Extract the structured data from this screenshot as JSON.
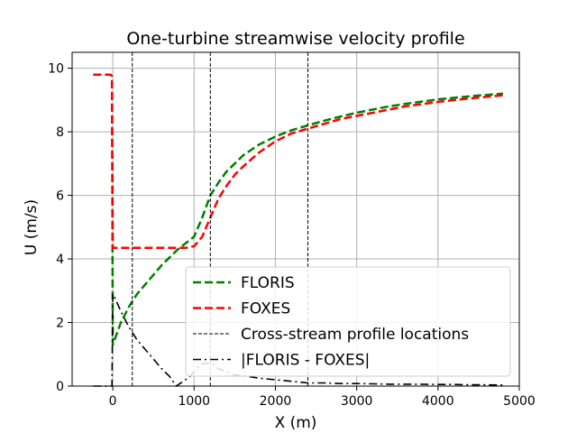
{
  "chart_data": {
    "type": "line",
    "title": "One-turbine streamwise velocity profile",
    "xlabel": "X (m)",
    "ylabel": "U (m/s)",
    "xlim": [
      -500,
      5000
    ],
    "ylim": [
      0,
      10.5
    ],
    "xticks": [
      0,
      1000,
      2000,
      3000,
      4000,
      5000
    ],
    "xtick_labels": [
      "0",
      "1000",
      "2000",
      "3000",
      "4000",
      "5000"
    ],
    "yticks": [
      0,
      2,
      4,
      6,
      8,
      10
    ],
    "ytick_labels": [
      "0",
      "2",
      "4",
      "6",
      "8",
      "10"
    ],
    "grid": true,
    "legend_position": "lower right",
    "series": [
      {
        "name": "FLORIS",
        "color": "#008000",
        "style": "dashed",
        "x": [
          -240,
          -30,
          -10,
          0,
          100,
          200,
          300,
          400,
          500,
          600,
          700,
          800,
          900,
          1000,
          1100,
          1200,
          1300,
          1400,
          1500,
          1600,
          1800,
          2000,
          2200,
          2400,
          2600,
          2800,
          3000,
          3200,
          3400,
          3600,
          3800,
          4000,
          4200,
          4400,
          4600,
          4800
        ],
        "y": [
          9.8,
          9.8,
          9.75,
          1.3,
          2.0,
          2.5,
          2.9,
          3.2,
          3.5,
          3.8,
          4.05,
          4.3,
          4.5,
          4.7,
          5.3,
          6.0,
          6.4,
          6.75,
          7.0,
          7.25,
          7.6,
          7.85,
          8.05,
          8.2,
          8.35,
          8.48,
          8.6,
          8.7,
          8.8,
          8.88,
          8.95,
          9.02,
          9.07,
          9.12,
          9.16,
          9.2
        ]
      },
      {
        "name": "FOXES",
        "color": "#ff0000",
        "style": "dashed",
        "x": [
          -240,
          -30,
          -10,
          0,
          100,
          300,
          500,
          700,
          900,
          1000,
          1100,
          1200,
          1300,
          1400,
          1500,
          1600,
          1800,
          2000,
          2200,
          2400,
          2600,
          2800,
          3000,
          3200,
          3400,
          3600,
          3800,
          4000,
          4200,
          4400,
          4600,
          4800
        ],
        "y": [
          9.8,
          9.8,
          9.75,
          4.35,
          4.35,
          4.35,
          4.35,
          4.35,
          4.35,
          4.4,
          4.7,
          5.3,
          5.9,
          6.3,
          6.65,
          6.9,
          7.35,
          7.7,
          7.95,
          8.1,
          8.25,
          8.4,
          8.5,
          8.6,
          8.7,
          8.8,
          8.87,
          8.94,
          9.0,
          9.05,
          9.1,
          9.15
        ]
      },
      {
        "name": "Cross-stream profile locations",
        "color": "#000000",
        "style": "thin-dashed",
        "vlines": [
          240,
          1200,
          2400
        ]
      },
      {
        "name": "|FLORIS - FOXES|",
        "color": "#000000",
        "style": "dashdot",
        "x": [
          -240,
          -30,
          -10,
          0,
          30,
          100,
          200,
          300,
          400,
          500,
          600,
          700,
          780,
          850,
          950,
          1000,
          1050,
          1100,
          1150,
          1200,
          1300,
          1400,
          1500,
          1600,
          1800,
          2000,
          2200,
          2400,
          2600,
          2800,
          3000,
          3200,
          3400,
          3600,
          3800,
          4000,
          4200,
          4400,
          4600,
          4800
        ],
        "y": [
          0.0,
          0.0,
          0.0,
          2.9,
          2.75,
          2.35,
          1.85,
          1.45,
          1.15,
          0.85,
          0.55,
          0.3,
          0.0,
          0.12,
          0.3,
          0.45,
          0.6,
          0.7,
          0.72,
          0.72,
          0.55,
          0.45,
          0.35,
          0.33,
          0.25,
          0.2,
          0.15,
          0.1,
          0.1,
          0.08,
          0.08,
          0.07,
          0.06,
          0.06,
          0.06,
          0.05,
          0.05,
          0.04,
          0.04,
          0.03
        ]
      }
    ]
  }
}
